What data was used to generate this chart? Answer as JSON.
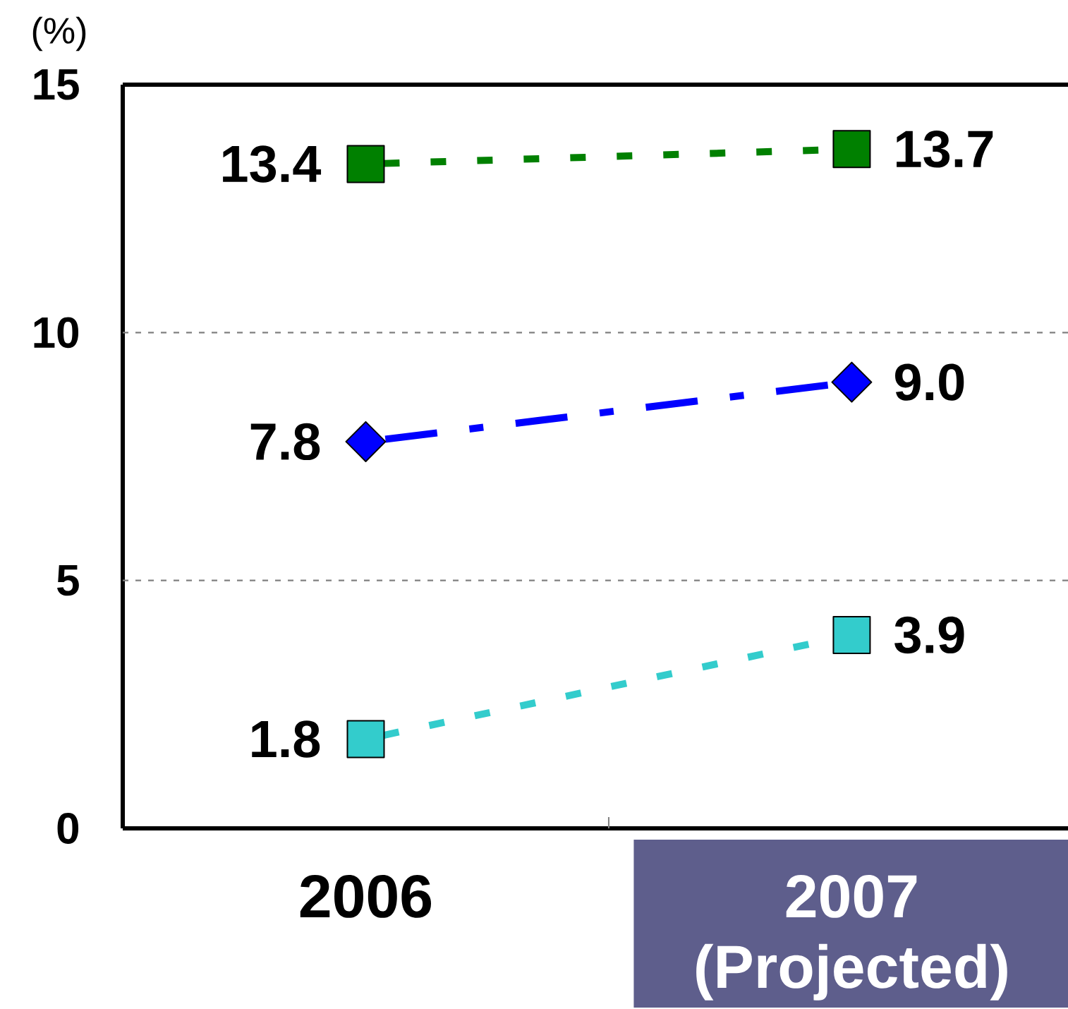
{
  "chart_data": {
    "type": "line",
    "ylabel": "(%)",
    "categories": [
      "2006",
      "2007 (Projected)"
    ],
    "ylim": [
      0,
      15
    ],
    "yticks": [
      0,
      5,
      10,
      15
    ],
    "grid": "y",
    "series": [
      {
        "color": "#008000",
        "values": [
          13.4,
          13.7
        ],
        "value_labels": [
          "13.4",
          "13.7"
        ],
        "marker": "square",
        "line_style": "dashed"
      },
      {
        "color": "#0000ff",
        "values": [
          7.8,
          9.0
        ],
        "value_labels": [
          "7.8",
          "9.0"
        ],
        "marker": "diamond",
        "line_style": "dashdot"
      },
      {
        "color": "#33cccc",
        "values": [
          1.8,
          3.9
        ],
        "value_labels": [
          "1.8",
          "3.9"
        ],
        "marker": "square",
        "line_style": "dashed"
      }
    ]
  }
}
